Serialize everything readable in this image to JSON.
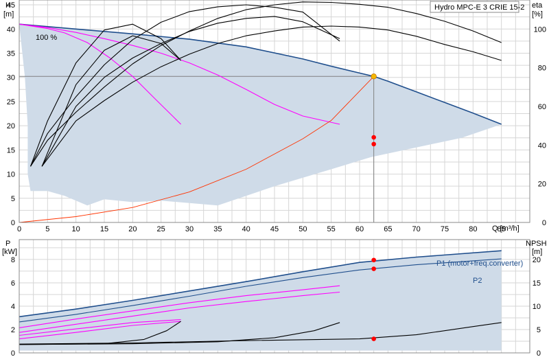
{
  "chart_data": [
    {
      "type": "line",
      "title": "Hydro MPC-E 3 CRIE 15-2",
      "ylabel": "H",
      "yunit": "[m]",
      "y2label": "eta",
      "y2unit": "[%]",
      "xlabel": "Q [m³/h]",
      "xlim": [
        0,
        90
      ],
      "ylim": [
        0,
        46
      ],
      "y2lim": [
        0,
        115
      ],
      "xticks": [
        0,
        5,
        10,
        15,
        20,
        25,
        30,
        35,
        40,
        45,
        50,
        55,
        60,
        65,
        70,
        75,
        80,
        85
      ],
      "yticks": [
        0,
        5,
        10,
        15,
        20,
        25,
        30,
        35,
        40,
        45
      ],
      "y2ticks": [
        0,
        20,
        40,
        60,
        80,
        100
      ],
      "grid": true,
      "speed_label": "100 %",
      "operating_point": {
        "x": 62.5,
        "y": 30.2
      },
      "colors": {
        "envelope": "#cfdbe8",
        "main": "#1f4e8c",
        "curve": "#ff00ff",
        "system": "#ff3300",
        "eff": "#000000",
        "point": "#f5b800",
        "marker": "#ff0000"
      },
      "envelope": [
        [
          0,
          41
        ],
        [
          5,
          40.5
        ],
        [
          15,
          39.5
        ],
        [
          25,
          38.5
        ],
        [
          35,
          37.2
        ],
        [
          45,
          35.2
        ],
        [
          55,
          32.5
        ],
        [
          62.5,
          30.2
        ],
        [
          70,
          27
        ],
        [
          78,
          23.5
        ],
        [
          85,
          20.3
        ],
        [
          78,
          17.5
        ],
        [
          70,
          15.5
        ],
        [
          62,
          13.5
        ],
        [
          55,
          11
        ],
        [
          45,
          7.5
        ],
        [
          35,
          3.5
        ],
        [
          25,
          4.5
        ],
        [
          20,
          4.2
        ],
        [
          15,
          4.8
        ],
        [
          12,
          3.5
        ],
        [
          8,
          5.5
        ],
        [
          5,
          6.5
        ],
        [
          2,
          6.5
        ],
        [
          1.5,
          10
        ],
        [
          1.5,
          20
        ],
        [
          1,
          30
        ],
        [
          0,
          41
        ]
      ],
      "series": [
        {
          "role": "main",
          "points": [
            [
              0,
              41
            ],
            [
              10,
              40
            ],
            [
              20,
              39
            ],
            [
              30,
              37.9
            ],
            [
              40,
              36.3
            ],
            [
              50,
              33.8
            ],
            [
              55,
              32.3
            ],
            [
              60,
              30.9
            ],
            [
              62.5,
              30.2
            ],
            [
              65,
              29.2
            ],
            [
              70,
              27
            ],
            [
              75,
              24.8
            ],
            [
              80,
              22.6
            ],
            [
              85,
              20.3
            ]
          ]
        },
        {
          "role": "curve",
          "points": [
            [
              0,
              41
            ],
            [
              5,
              40.3
            ],
            [
              10,
              39.3
            ],
            [
              15,
              38
            ],
            [
              20,
              36.6
            ],
            [
              25,
              35
            ],
            [
              30,
              33
            ],
            [
              35,
              30.5
            ],
            [
              40,
              27.5
            ],
            [
              45,
              24.4
            ],
            [
              50,
              22
            ],
            [
              56.5,
              20.3
            ]
          ]
        },
        {
          "role": "curve",
          "points": [
            [
              0,
              41
            ],
            [
              5,
              40.1
            ],
            [
              8,
              39.2
            ],
            [
              12,
              37.2
            ],
            [
              16,
              34
            ],
            [
              20,
              30.2
            ],
            [
              24,
              25.5
            ],
            [
              28.5,
              20.3
            ]
          ]
        },
        {
          "role": "system",
          "points": [
            [
              0,
              0
            ],
            [
              10,
              1.2
            ],
            [
              20,
              3.1
            ],
            [
              30,
              6.3
            ],
            [
              40,
              11
            ],
            [
              50,
              17.3
            ],
            [
              55,
              21.1
            ],
            [
              62.5,
              30.2
            ]
          ]
        },
        {
          "role": "eff",
          "points": [
            [
              2,
              11.6
            ],
            [
              5,
              17
            ],
            [
              10,
              22.8
            ],
            [
              15,
              28
            ],
            [
              20,
              32.8
            ],
            [
              25,
              36.6
            ],
            [
              30,
              39.6
            ],
            [
              35,
              42.2
            ],
            [
              40,
              44
            ],
            [
              45,
              45
            ],
            [
              50,
              45.6
            ],
            [
              55,
              45.5
            ],
            [
              60,
              45.1
            ],
            [
              65,
              44.5
            ],
            [
              70,
              43.2
            ],
            [
              75,
              41.6
            ],
            [
              80,
              39.6
            ],
            [
              85,
              37.2
            ]
          ]
        },
        {
          "role": "eff",
          "points": [
            [
              2,
              11.6
            ],
            [
              5,
              18.4
            ],
            [
              10,
              26
            ],
            [
              15,
              32.6
            ],
            [
              20,
              37.8
            ],
            [
              25,
              41.4
            ],
            [
              30,
              43.6
            ],
            [
              35,
              44.6
            ],
            [
              40,
              45
            ],
            [
              45,
              44.5
            ],
            [
              50,
              43.5
            ],
            [
              56.5,
              37.5
            ]
          ]
        },
        {
          "role": "eff",
          "points": [
            [
              2,
              11.6
            ],
            [
              5,
              21
            ],
            [
              10,
              33
            ],
            [
              15,
              39.8
            ],
            [
              20,
              41
            ],
            [
              25,
              38
            ],
            [
              28.5,
              33.5
            ]
          ]
        },
        {
          "role": "eff",
          "points": [
            [
              4,
              11.6
            ],
            [
              10,
              21
            ],
            [
              15,
              25.2
            ],
            [
              20,
              29
            ],
            [
              25,
              32.2
            ],
            [
              30,
              34.8
            ],
            [
              35,
              37
            ],
            [
              40,
              38.6
            ],
            [
              45,
              39.6
            ],
            [
              50,
              40.4
            ],
            [
              55,
              40.6
            ],
            [
              60,
              40.4
            ],
            [
              65,
              39.8
            ],
            [
              70,
              38.5
            ],
            [
              75,
              36.8
            ],
            [
              80,
              35.3
            ],
            [
              85,
              33.5
            ]
          ]
        },
        {
          "role": "eff",
          "points": [
            [
              4,
              11.6
            ],
            [
              10,
              24
            ],
            [
              15,
              30
            ],
            [
              20,
              34
            ],
            [
              25,
              37
            ],
            [
              30,
              39.5
            ],
            [
              35,
              41.2
            ],
            [
              40,
              42.2
            ],
            [
              45,
              42.6
            ],
            [
              50,
              41.5
            ],
            [
              56.5,
              38
            ]
          ]
        },
        {
          "role": "eff",
          "points": [
            [
              4,
              11.6
            ],
            [
              10,
              28.5
            ],
            [
              15,
              35.6
            ],
            [
              20,
              38.6
            ],
            [
              25,
              37
            ],
            [
              28.5,
              33.5
            ]
          ]
        }
      ],
      "markers": [
        {
          "x": 62.5,
          "y": 17.6
        },
        {
          "x": 62.5,
          "y": 16.2
        }
      ]
    },
    {
      "type": "line",
      "ylabel": "P",
      "yunit": "[kW]",
      "y2label": "NPSH",
      "y2unit": "[m]",
      "xlim": [
        0,
        90
      ],
      "ylim": [
        0,
        9.7
      ],
      "y2lim": [
        0,
        24.25
      ],
      "yticks": [
        0,
        2,
        4,
        6,
        8
      ],
      "y2ticks": [
        0,
        5,
        10,
        15,
        20
      ],
      "grid": true,
      "series": [
        {
          "name": "P1 (motor+freq.converter)",
          "role": "main",
          "points": [
            [
              0,
              3.1
            ],
            [
              10,
              3.75
            ],
            [
              20,
              4.5
            ],
            [
              30,
              5.3
            ],
            [
              40,
              6.1
            ],
            [
              50,
              6.95
            ],
            [
              60,
              7.75
            ],
            [
              70,
              8.2
            ],
            [
              85,
              8.75
            ]
          ]
        },
        {
          "name": "P2",
          "role": "p2",
          "points": [
            [
              0,
              2.65
            ],
            [
              10,
              3.3
            ],
            [
              20,
              4.05
            ],
            [
              30,
              4.85
            ],
            [
              40,
              5.7
            ],
            [
              50,
              6.45
            ],
            [
              60,
              7.1
            ],
            [
              70,
              7.55
            ],
            [
              85,
              8.05
            ]
          ]
        },
        {
          "role": "curve",
          "points": [
            [
              0,
              2.15
            ],
            [
              10,
              2.9
            ],
            [
              20,
              3.6
            ],
            [
              30,
              4.3
            ],
            [
              40,
              4.9
            ],
            [
              50,
              5.4
            ],
            [
              56.5,
              5.75
            ]
          ]
        },
        {
          "role": "curve",
          "points": [
            [
              0,
              1.75
            ],
            [
              10,
              2.45
            ],
            [
              20,
              3.15
            ],
            [
              30,
              3.85
            ],
            [
              40,
              4.4
            ],
            [
              50,
              4.9
            ],
            [
              56.5,
              5.2
            ]
          ]
        },
        {
          "role": "curve",
          "points": [
            [
              0,
              1.5
            ],
            [
              10,
              2.05
            ],
            [
              20,
              2.6
            ],
            [
              28.5,
              2.85
            ]
          ]
        },
        {
          "role": "curve",
          "points": [
            [
              0,
              1.2
            ],
            [
              10,
              1.75
            ],
            [
              20,
              2.35
            ],
            [
              28.5,
              2.7
            ]
          ]
        },
        {
          "role": "eff",
          "points": [
            [
              0,
              0.75
            ],
            [
              20,
              0.85
            ],
            [
              40,
              1.05
            ],
            [
              60,
              1.2
            ],
            [
              70,
              1.55
            ],
            [
              80,
              2.25
            ],
            [
              85,
              2.6
            ]
          ]
        },
        {
          "role": "eff",
          "points": [
            [
              0,
              0.72
            ],
            [
              20,
              0.78
            ],
            [
              35,
              0.95
            ],
            [
              45,
              1.3
            ],
            [
              52,
              1.9
            ],
            [
              56.5,
              2.6
            ]
          ]
        },
        {
          "role": "eff",
          "points": [
            [
              0,
              0.72
            ],
            [
              15,
              0.78
            ],
            [
              22,
              1.15
            ],
            [
              26,
              1.9
            ],
            [
              28.5,
              2.7
            ]
          ]
        }
      ],
      "envelope": [
        [
          0,
          3.1
        ],
        [
          10,
          3.75
        ],
        [
          20,
          4.5
        ],
        [
          30,
          5.3
        ],
        [
          40,
          6.1
        ],
        [
          50,
          6.95
        ],
        [
          60,
          7.75
        ],
        [
          70,
          8.2
        ],
        [
          85,
          8.75
        ],
        [
          85,
          0.2
        ],
        [
          0,
          0.2
        ]
      ],
      "markers": [
        {
          "x": 62.5,
          "y": 7.95
        },
        {
          "x": 62.5,
          "y": 7.2
        },
        {
          "x": 62.5,
          "y": 1.2
        }
      ]
    }
  ]
}
